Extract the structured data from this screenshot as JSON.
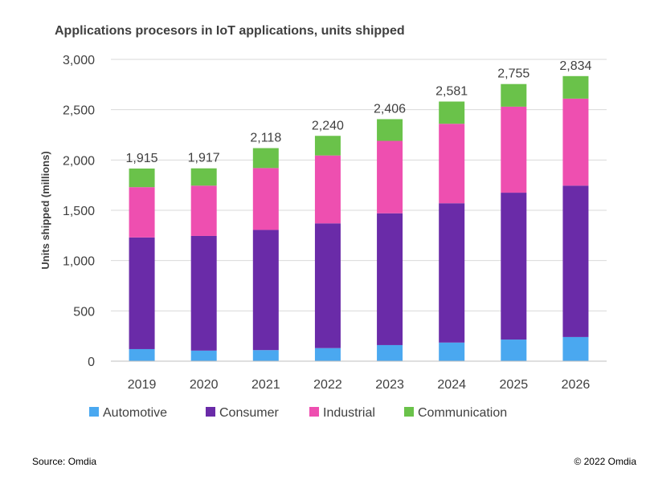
{
  "chart_data": {
    "type": "bar",
    "stacked": true,
    "title": "Applications procesors in IoT applications, units shipped",
    "xlabel": "",
    "ylabel": "Units shipped (millions)",
    "ylim": [
      0,
      3000
    ],
    "yticks": [
      0,
      500,
      1000,
      1500,
      2000,
      2500,
      3000
    ],
    "ytick_labels": [
      "0",
      "500",
      "1,000",
      "1,500",
      "2,000",
      "2,500",
      "3,000"
    ],
    "categories": [
      "2019",
      "2020",
      "2021",
      "2022",
      "2023",
      "2024",
      "2025",
      "2026"
    ],
    "series": [
      {
        "name": "Automotive",
        "color": "#4aa8f0",
        "values": [
          120,
          105,
          110,
          130,
          160,
          185,
          215,
          240
        ]
      },
      {
        "name": "Consumer",
        "color": "#6a2ba8",
        "values": [
          1110,
          1140,
          1195,
          1240,
          1310,
          1385,
          1460,
          1505
        ]
      },
      {
        "name": "Industrial",
        "color": "#ee4fb0",
        "values": [
          500,
          500,
          615,
          675,
          720,
          790,
          855,
          865
        ]
      },
      {
        "name": "Communication",
        "color": "#6ac24a",
        "values": [
          185,
          172,
          198,
          195,
          216,
          221,
          225,
          224
        ]
      }
    ],
    "totals": [
      1915,
      1917,
      2118,
      2240,
      2406,
      2581,
      2755,
      2834
    ],
    "total_labels": [
      "1,915",
      "1,917",
      "2,118",
      "2,240",
      "2,406",
      "2,581",
      "2,755",
      "2,834"
    ],
    "legend_position": "bottom",
    "grid": true
  },
  "footer": {
    "source": "Source: Omdia",
    "copyright": "© 2022 Omdia"
  }
}
